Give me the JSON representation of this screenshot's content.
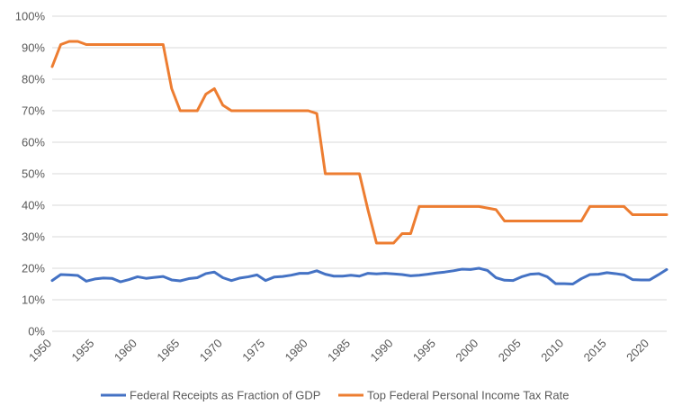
{
  "chart_data": {
    "type": "line",
    "title": "",
    "xlabel": "",
    "ylabel": "",
    "xlim": [
      1950,
      2022
    ],
    "ylim": [
      0,
      100
    ],
    "x_ticks": [
      1950,
      1955,
      1960,
      1965,
      1970,
      1975,
      1980,
      1985,
      1990,
      1995,
      2000,
      2005,
      2010,
      2015,
      2020
    ],
    "y_ticks": [
      0,
      10,
      20,
      30,
      40,
      50,
      60,
      70,
      80,
      90,
      100
    ],
    "y_tick_labels": [
      "0%",
      "10%",
      "20%",
      "30%",
      "40%",
      "50%",
      "60%",
      "70%",
      "80%",
      "90%",
      "100%"
    ],
    "grid": "horizontal",
    "legend_position": "bottom",
    "x": [
      1950,
      1951,
      1952,
      1953,
      1954,
      1955,
      1956,
      1957,
      1958,
      1959,
      1960,
      1961,
      1962,
      1963,
      1964,
      1965,
      1966,
      1967,
      1968,
      1969,
      1970,
      1971,
      1972,
      1973,
      1974,
      1975,
      1976,
      1977,
      1978,
      1979,
      1980,
      1981,
      1982,
      1983,
      1984,
      1985,
      1986,
      1987,
      1988,
      1989,
      1990,
      1991,
      1992,
      1993,
      1994,
      1995,
      1996,
      1997,
      1998,
      1999,
      2000,
      2001,
      2002,
      2003,
      2004,
      2005,
      2006,
      2007,
      2008,
      2009,
      2010,
      2011,
      2012,
      2013,
      2014,
      2015,
      2016,
      2017,
      2018,
      2019,
      2020,
      2021,
      2022
    ],
    "series": [
      {
        "name": "Federal Receipts as Fraction of GDP",
        "color": "#4472c4",
        "values": [
          16.1,
          18.0,
          17.9,
          17.7,
          15.9,
          16.6,
          16.9,
          16.8,
          15.7,
          16.4,
          17.3,
          16.8,
          17.1,
          17.4,
          16.3,
          16.0,
          16.7,
          17.0,
          18.3,
          18.8,
          17.0,
          16.1,
          16.9,
          17.3,
          17.9,
          16.1,
          17.2,
          17.4,
          17.8,
          18.4,
          18.4,
          19.2,
          18.1,
          17.5,
          17.5,
          17.8,
          17.5,
          18.4,
          18.2,
          18.4,
          18.2,
          18.0,
          17.6,
          17.8,
          18.1,
          18.5,
          18.8,
          19.2,
          19.7,
          19.6,
          20.0,
          19.3,
          17.0,
          16.2,
          16.1,
          17.3,
          18.1,
          18.3,
          17.3,
          15.1,
          15.1,
          15.0,
          16.7,
          18.0,
          18.1,
          18.6,
          18.3,
          17.9,
          16.4,
          16.3,
          16.3,
          17.9,
          19.6
        ]
      },
      {
        "name": "Top Federal Personal Income Tax Rate",
        "color": "#ed7d31",
        "values": [
          84,
          91,
          92,
          92,
          91,
          91,
          91,
          91,
          91,
          91,
          91,
          91,
          91,
          91,
          77,
          70,
          70,
          70,
          75.25,
          77,
          71.75,
          70,
          70,
          70,
          70,
          70,
          70,
          70,
          70,
          70,
          70,
          69.13,
          50,
          50,
          50,
          50,
          50,
          38.5,
          28,
          28,
          28,
          31,
          31,
          39.6,
          39.6,
          39.6,
          39.6,
          39.6,
          39.6,
          39.6,
          39.6,
          39.1,
          38.6,
          35,
          35,
          35,
          35,
          35,
          35,
          35,
          35,
          35,
          35,
          39.6,
          39.6,
          39.6,
          39.6,
          39.6,
          37,
          37,
          37,
          37,
          37
        ]
      }
    ]
  }
}
